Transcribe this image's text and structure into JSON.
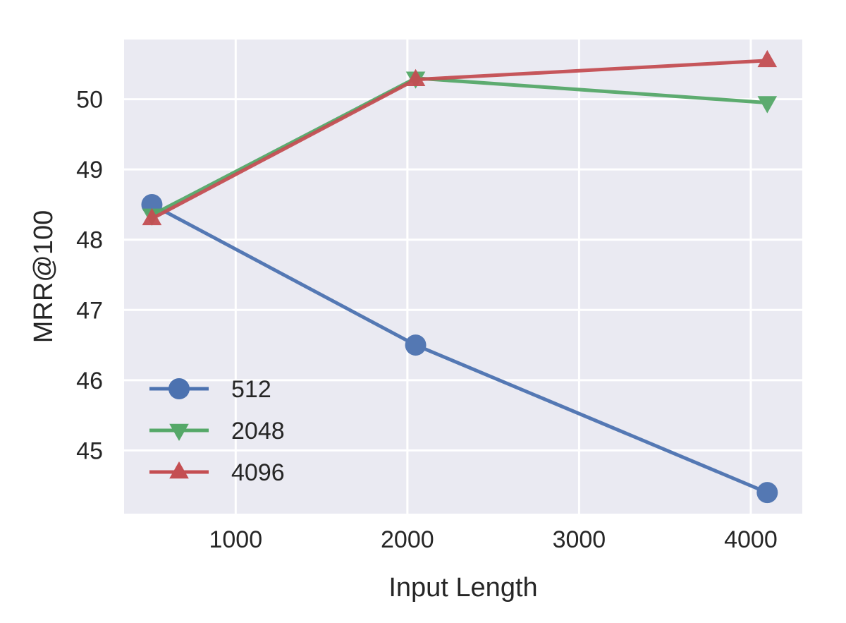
{
  "chart_data": {
    "type": "line",
    "title": "",
    "xlabel": "Input Length",
    "ylabel": "MRR@100",
    "xlim": [
      350,
      4300
    ],
    "ylim": [
      44.1,
      50.85
    ],
    "xticks": [
      1000,
      2000,
      3000,
      4000
    ],
    "yticks": [
      45,
      46,
      47,
      48,
      49,
      50
    ],
    "grid": true,
    "legend_position": "lower-left",
    "series": [
      {
        "name": "512",
        "marker": "circle",
        "color": "#4C72B0",
        "x": [
          512,
          2048,
          4096
        ],
        "y": [
          48.5,
          46.5,
          44.4
        ]
      },
      {
        "name": "2048",
        "marker": "triangle-down",
        "color": "#55A868",
        "x": [
          512,
          2048,
          4096
        ],
        "y": [
          48.35,
          50.3,
          49.95
        ]
      },
      {
        "name": "4096",
        "marker": "triangle-up",
        "color": "#C44E52",
        "x": [
          512,
          2048,
          4096
        ],
        "y": [
          48.3,
          50.28,
          50.55
        ]
      }
    ]
  }
}
